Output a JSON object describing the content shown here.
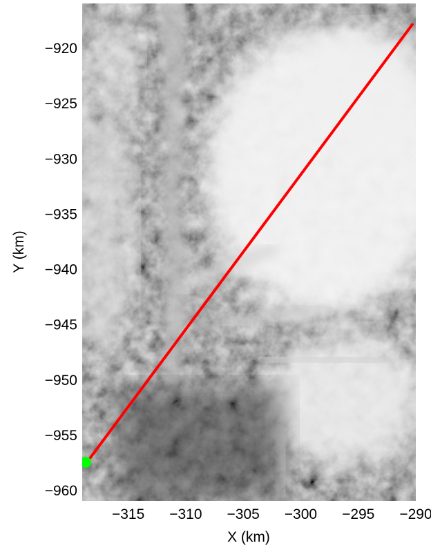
{
  "chart_data": {
    "type": "scatter",
    "title": "",
    "xlabel": "X (km)",
    "ylabel": "Y (km)",
    "xlim": [
      -319,
      -290
    ],
    "ylim": [
      -961,
      -916
    ],
    "xticks": [
      -315,
      -310,
      -305,
      -300,
      -295,
      -290
    ],
    "yticks": [
      -920,
      -925,
      -930,
      -935,
      -940,
      -945,
      -950,
      -955,
      -960
    ],
    "xtick_labels": [
      "−315",
      "−310",
      "−305",
      "−300",
      "−295",
      "−290"
    ],
    "ytick_labels": [
      "−920",
      "−925",
      "−930",
      "−935",
      "−940",
      "−945",
      "−950",
      "−955",
      "−960"
    ],
    "grid": false,
    "background": "grayscale satellite image of glaciers",
    "series": [
      {
        "kind": "line",
        "color": "#ff0000",
        "x": [
          -318.3,
          -290.3
        ],
        "y": [
          -957.1,
          -917.9
        ]
      },
      {
        "kind": "marker",
        "color": "#00ff00",
        "x": [
          -318.7
        ],
        "y": [
          -957.5
        ]
      }
    ]
  }
}
